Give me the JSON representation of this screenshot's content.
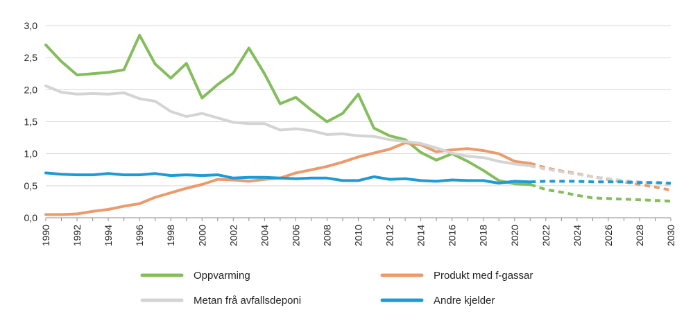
{
  "chart_data": {
    "type": "line",
    "title": "",
    "xlabel": "",
    "ylabel": "",
    "xlim": [
      1990,
      2030
    ],
    "ylim": [
      0,
      3.0
    ],
    "y_ticks": [
      "0,0",
      "0,5",
      "1,0",
      "1,5",
      "2,0",
      "2,5",
      "3,0"
    ],
    "x_ticks": [
      "1990",
      "1992",
      "1994",
      "1996",
      "1998",
      "2000",
      "2002",
      "2004",
      "2006",
      "2008",
      "2010",
      "2012",
      "2014",
      "2016",
      "2018",
      "2020",
      "2022",
      "2024",
      "2026",
      "2028",
      "2030"
    ],
    "grid": "horizontal",
    "legend_position": "bottom",
    "projection_style": "dashed after 2021",
    "series": [
      {
        "name": "Oppvarming",
        "color": "#84bd5c",
        "historical": [
          [
            1990,
            2.7
          ],
          [
            1991,
            2.44
          ],
          [
            1992,
            2.23
          ],
          [
            1993,
            2.25
          ],
          [
            1994,
            2.27
          ],
          [
            1995,
            2.31
          ],
          [
            1996,
            2.85
          ],
          [
            1997,
            2.4
          ],
          [
            1998,
            2.18
          ],
          [
            1999,
            2.41
          ],
          [
            2000,
            1.87
          ],
          [
            2001,
            2.08
          ],
          [
            2002,
            2.26
          ],
          [
            2003,
            2.65
          ],
          [
            2004,
            2.25
          ],
          [
            2005,
            1.78
          ],
          [
            2006,
            1.88
          ],
          [
            2007,
            1.68
          ],
          [
            2008,
            1.5
          ],
          [
            2009,
            1.63
          ],
          [
            2010,
            1.93
          ],
          [
            2011,
            1.4
          ],
          [
            2012,
            1.28
          ],
          [
            2013,
            1.22
          ],
          [
            2014,
            1.02
          ],
          [
            2015,
            0.9
          ],
          [
            2016,
            1.0
          ],
          [
            2017,
            0.88
          ],
          [
            2018,
            0.74
          ],
          [
            2019,
            0.58
          ],
          [
            2020,
            0.53
          ],
          [
            2021,
            0.52
          ]
        ],
        "projection": [
          [
            2021,
            0.52
          ],
          [
            2022,
            0.44
          ],
          [
            2023,
            0.4
          ],
          [
            2024,
            0.35
          ],
          [
            2025,
            0.31
          ],
          [
            2026,
            0.3
          ],
          [
            2027,
            0.29
          ],
          [
            2028,
            0.28
          ],
          [
            2029,
            0.27
          ],
          [
            2030,
            0.26
          ]
        ]
      },
      {
        "name": "Produkt med f-gassar",
        "color": "#ec9a6c",
        "historical": [
          [
            1990,
            0.05
          ],
          [
            1991,
            0.05
          ],
          [
            1992,
            0.06
          ],
          [
            1993,
            0.1
          ],
          [
            1994,
            0.13
          ],
          [
            1995,
            0.18
          ],
          [
            1996,
            0.22
          ],
          [
            1997,
            0.32
          ],
          [
            1998,
            0.39
          ],
          [
            1999,
            0.46
          ],
          [
            2000,
            0.52
          ],
          [
            2001,
            0.6
          ],
          [
            2002,
            0.59
          ],
          [
            2003,
            0.57
          ],
          [
            2004,
            0.6
          ],
          [
            2005,
            0.62
          ],
          [
            2006,
            0.7
          ],
          [
            2007,
            0.75
          ],
          [
            2008,
            0.8
          ],
          [
            2009,
            0.87
          ],
          [
            2010,
            0.95
          ],
          [
            2011,
            1.01
          ],
          [
            2012,
            1.07
          ],
          [
            2013,
            1.17
          ],
          [
            2014,
            1.14
          ],
          [
            2015,
            1.03
          ],
          [
            2016,
            1.06
          ],
          [
            2017,
            1.08
          ],
          [
            2018,
            1.05
          ],
          [
            2019,
            1.0
          ],
          [
            2020,
            0.88
          ],
          [
            2021,
            0.85
          ]
        ],
        "projection": [
          [
            2021,
            0.85
          ],
          [
            2022,
            0.78
          ],
          [
            2023,
            0.73
          ],
          [
            2024,
            0.69
          ],
          [
            2025,
            0.64
          ],
          [
            2026,
            0.6
          ],
          [
            2027,
            0.56
          ],
          [
            2028,
            0.52
          ],
          [
            2029,
            0.48
          ],
          [
            2030,
            0.43
          ]
        ]
      },
      {
        "name": "Metan frå avfallsdeponi",
        "color": "#d4d4d4",
        "historical": [
          [
            1990,
            2.06
          ],
          [
            1991,
            1.96
          ],
          [
            1992,
            1.93
          ],
          [
            1993,
            1.94
          ],
          [
            1994,
            1.93
          ],
          [
            1995,
            1.95
          ],
          [
            1996,
            1.86
          ],
          [
            1997,
            1.82
          ],
          [
            1998,
            1.66
          ],
          [
            1999,
            1.58
          ],
          [
            2000,
            1.63
          ],
          [
            2001,
            1.56
          ],
          [
            2002,
            1.49
          ],
          [
            2003,
            1.47
          ],
          [
            2004,
            1.47
          ],
          [
            2005,
            1.37
          ],
          [
            2006,
            1.39
          ],
          [
            2007,
            1.36
          ],
          [
            2008,
            1.3
          ],
          [
            2009,
            1.31
          ],
          [
            2010,
            1.28
          ],
          [
            2011,
            1.27
          ],
          [
            2012,
            1.22
          ],
          [
            2013,
            1.19
          ],
          [
            2014,
            1.16
          ],
          [
            2015,
            1.09
          ],
          [
            2016,
            1.01
          ],
          [
            2017,
            0.96
          ],
          [
            2018,
            0.94
          ],
          [
            2019,
            0.88
          ],
          [
            2020,
            0.84
          ],
          [
            2021,
            0.81
          ]
        ],
        "projection": [
          [
            2021,
            0.81
          ],
          [
            2022,
            0.76
          ],
          [
            2023,
            0.72
          ],
          [
            2024,
            0.68
          ],
          [
            2025,
            0.64
          ],
          [
            2026,
            0.61
          ],
          [
            2027,
            0.58
          ],
          [
            2028,
            0.56
          ],
          [
            2029,
            0.54
          ],
          [
            2030,
            0.52
          ]
        ]
      },
      {
        "name": "Andre kjelder",
        "color": "#1e9ad6",
        "historical": [
          [
            1990,
            0.7
          ],
          [
            1991,
            0.68
          ],
          [
            1992,
            0.67
          ],
          [
            1993,
            0.67
          ],
          [
            1994,
            0.69
          ],
          [
            1995,
            0.67
          ],
          [
            1996,
            0.67
          ],
          [
            1997,
            0.69
          ],
          [
            1998,
            0.66
          ],
          [
            1999,
            0.67
          ],
          [
            2000,
            0.66
          ],
          [
            2001,
            0.67
          ],
          [
            2002,
            0.62
          ],
          [
            2003,
            0.63
          ],
          [
            2004,
            0.63
          ],
          [
            2005,
            0.62
          ],
          [
            2006,
            0.61
          ],
          [
            2007,
            0.62
          ],
          [
            2008,
            0.62
          ],
          [
            2009,
            0.58
          ],
          [
            2010,
            0.58
          ],
          [
            2011,
            0.64
          ],
          [
            2012,
            0.6
          ],
          [
            2013,
            0.61
          ],
          [
            2014,
            0.58
          ],
          [
            2015,
            0.57
          ],
          [
            2016,
            0.59
          ],
          [
            2017,
            0.58
          ],
          [
            2018,
            0.58
          ],
          [
            2019,
            0.54
          ],
          [
            2020,
            0.57
          ],
          [
            2021,
            0.56
          ]
        ],
        "projection": [
          [
            2021,
            0.56
          ],
          [
            2022,
            0.57
          ],
          [
            2023,
            0.57
          ],
          [
            2024,
            0.57
          ],
          [
            2025,
            0.56
          ],
          [
            2026,
            0.56
          ],
          [
            2027,
            0.56
          ],
          [
            2028,
            0.55
          ],
          [
            2029,
            0.55
          ],
          [
            2030,
            0.54
          ]
        ]
      }
    ]
  },
  "legend": {
    "items": [
      {
        "label": "Oppvarming",
        "color": "#84bd5c"
      },
      {
        "label": "Produkt med f-gassar",
        "color": "#ec9a6c"
      },
      {
        "label": "Metan frå avfallsdeponi",
        "color": "#d4d4d4"
      },
      {
        "label": "Andre kjelder",
        "color": "#1e9ad6"
      }
    ]
  }
}
